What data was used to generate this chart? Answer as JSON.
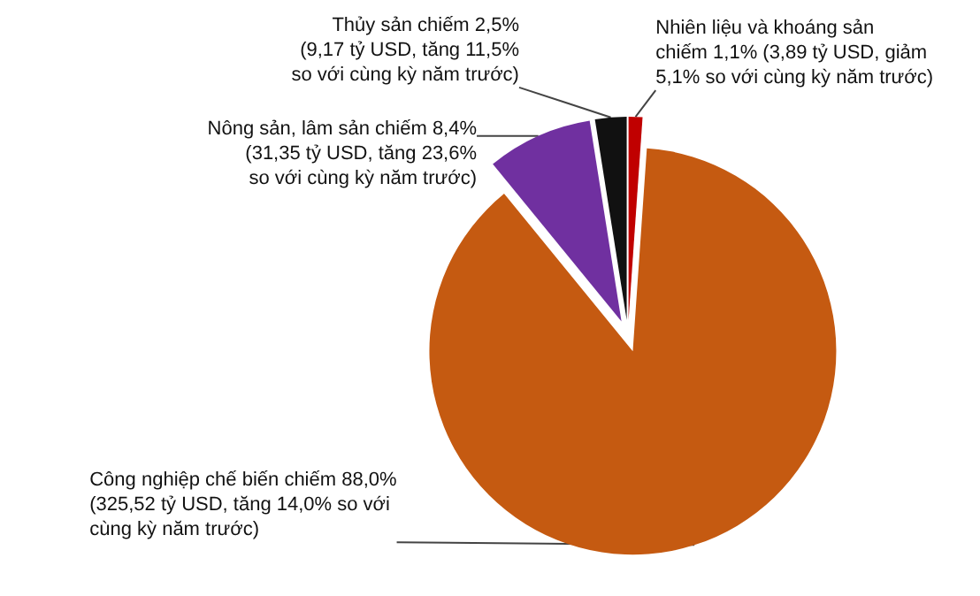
{
  "chart_data": {
    "type": "pie",
    "categories": [
      "Nhiên liệu và khoáng sản\nchiếm 1,1% (3,89 tỷ USD, giảm\n5,1% so với cùng kỳ năm trước)",
      "Công nghiệp chế biến chiếm 88,0%\n(325,52 tỷ USD, tăng 14,0% so với\ncùng kỳ năm trước)",
      "Nông sản, lâm sản chiếm 8,4%\n(31,35 tỷ USD, tăng 23,6%\nso với cùng kỳ năm trước)",
      "Thủy sản chiếm 2,5%\n(9,17 tỷ USD, tăng 11,5%\nso với cùng kỳ năm trước)"
    ],
    "values": [
      1.1,
      88.0,
      8.4,
      2.5
    ],
    "colors": [
      "#c00000",
      "#c55a11",
      "#7030a0",
      "#111111"
    ]
  }
}
